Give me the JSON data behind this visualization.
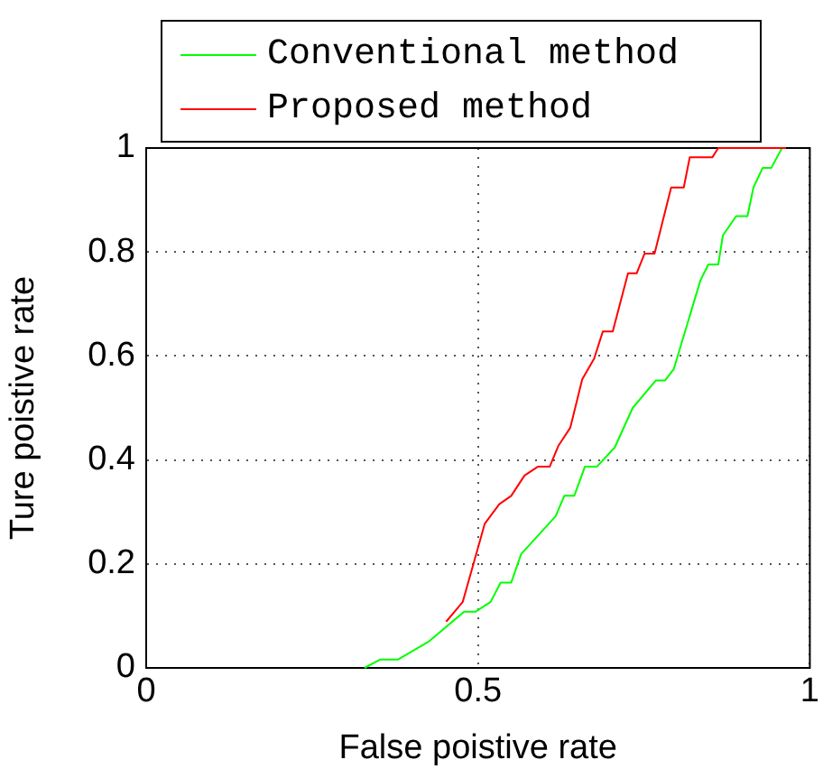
{
  "chart_data": {
    "type": "line",
    "xlabel": "False poistive rate",
    "ylabel": "Ture poistive rate",
    "xlim": [
      0,
      1
    ],
    "xticks": [
      0,
      0.5,
      1
    ],
    "ylim": [
      0,
      1
    ],
    "yticks": [
      0,
      0.2,
      0.4,
      0.6,
      0.8,
      1
    ],
    "grid": true,
    "legend": "top left",
    "marker": "none",
    "line_style": "solid",
    "series": [
      {
        "name": "Conventional method",
        "color": "#00ff00",
        "x": [
          0.329,
          0.352,
          0.379,
          0.425,
          0.479,
          0.496,
          0.519,
          0.534,
          0.55,
          0.565,
          0.617,
          0.63,
          0.645,
          0.661,
          0.679,
          0.706,
          0.733,
          0.768,
          0.782,
          0.795,
          0.835,
          0.847,
          0.862,
          0.869,
          0.889,
          0.906,
          0.915,
          0.929,
          0.942,
          0.958
        ],
        "values": [
          0,
          0.016,
          0.016,
          0.05,
          0.108,
          0.108,
          0.127,
          0.164,
          0.164,
          0.219,
          0.292,
          0.331,
          0.331,
          0.387,
          0.387,
          0.424,
          0.5,
          0.553,
          0.553,
          0.575,
          0.745,
          0.776,
          0.776,
          0.832,
          0.869,
          0.869,
          0.924,
          0.962,
          0.962,
          1
        ]
      },
      {
        "name": "Proposed method",
        "color": "#ff0000",
        "x": [
          0.452,
          0.477,
          0.505,
          0.51,
          0.532,
          0.55,
          0.57,
          0.59,
          0.608,
          0.621,
          0.639,
          0.657,
          0.675,
          0.688,
          0.703,
          0.726,
          0.739,
          0.751,
          0.766,
          0.791,
          0.81,
          0.819,
          0.853,
          0.862,
          0.964
        ],
        "values": [
          0.089,
          0.127,
          0.254,
          0.277,
          0.315,
          0.331,
          0.37,
          0.387,
          0.387,
          0.427,
          0.462,
          0.555,
          0.595,
          0.647,
          0.647,
          0.759,
          0.759,
          0.797,
          0.797,
          0.924,
          0.924,
          0.982,
          0.982,
          1,
          1
        ]
      }
    ]
  }
}
